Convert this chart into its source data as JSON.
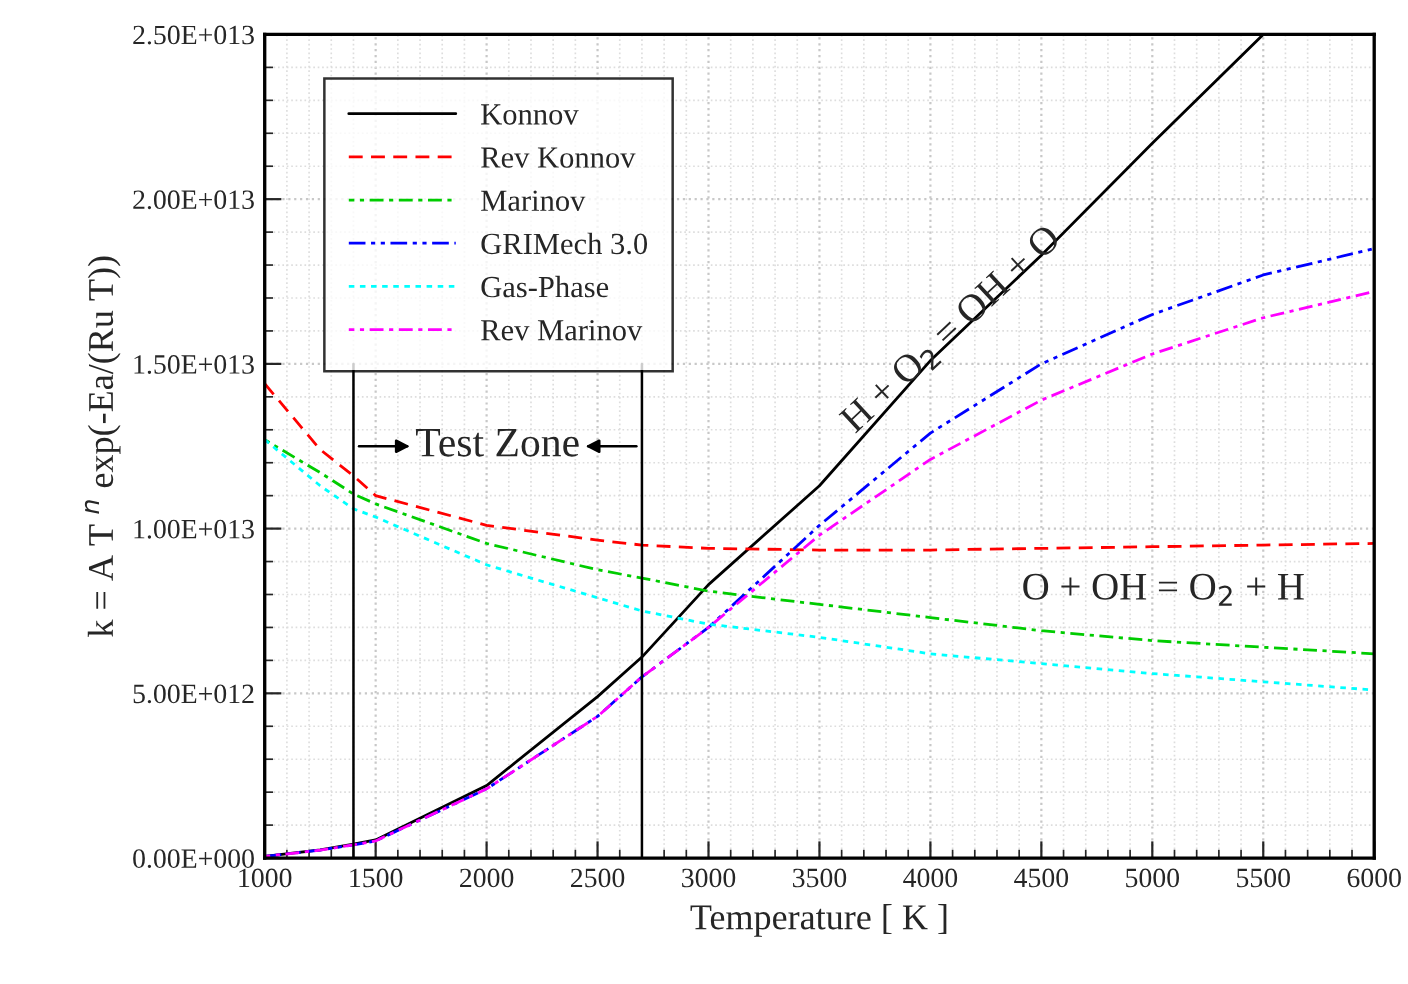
{
  "chart_data": {
    "type": "line",
    "xlabel": "Temperature [ K ]",
    "ylabel": "k = A T $^{n}$ exp(-Ea/(Ru T))",
    "x": [
      1000,
      1250,
      1400,
      1500,
      2000,
      2500,
      2700,
      3000,
      3500,
      4000,
      4500,
      5000,
      5500,
      6000
    ],
    "series": [
      {
        "name": "Konnov",
        "color": "#000000",
        "line_style": "solid",
        "values": [
          50000000000.0,
          250000000000.0,
          420000000000.0,
          550000000000.0,
          2200000000000.0,
          4900000000000.0,
          6100000000000.0,
          8300000000000.0,
          11300000000000.0,
          15100000000000.0,
          18300000000000.0,
          21700000000000.0,
          25000000000000.0,
          null
        ]
      },
      {
        "name": "Rev Konnov",
        "color": "#ff0000",
        "line_style": "dashed",
        "values": [
          14400000000000.0,
          12400000000000.0,
          11600000000000.0,
          11000000000000.0,
          10100000000000.0,
          9650000000000.0,
          9500000000000.0,
          9400000000000.0,
          9350000000000.0,
          9350000000000.0,
          9400000000000.0,
          9450000000000.0,
          9500000000000.0,
          9550000000000.0
        ]
      },
      {
        "name": "Marinov",
        "color": "#00cc00",
        "line_style": "dashdot",
        "values": [
          12700000000000.0,
          11700000000000.0,
          11050000000000.0,
          10750000000000.0,
          9550000000000.0,
          8750000000000.0,
          8500000000000.0,
          8100000000000.0,
          7700000000000.0,
          7300000000000.0,
          6900000000000.0,
          6600000000000.0,
          6400000000000.0,
          6200000000000.0
        ]
      },
      {
        "name": "GRIMech 3.0",
        "color": "#0000ff",
        "line_style": "dashdotdot",
        "values": [
          50000000000.0,
          240000000000.0,
          400000000000.0,
          520000000000.0,
          2100000000000.0,
          4300000000000.0,
          5500000000000.0,
          7000000000000.0,
          10100000000000.0,
          12900000000000.0,
          15000000000000.0,
          16500000000000.0,
          17700000000000.0,
          18500000000000.0
        ]
      },
      {
        "name": "Gas-Phase",
        "color": "#00ffff",
        "line_style": "dotted",
        "values": [
          12700000000000.0,
          11300000000000.0,
          10600000000000.0,
          10350000000000.0,
          8900000000000.0,
          7900000000000.0,
          7500000000000.0,
          7100000000000.0,
          6700000000000.0,
          6200000000000.0,
          5900000000000.0,
          5600000000000.0,
          5350000000000.0,
          5100000000000.0
        ]
      },
      {
        "name": "Rev Marinov",
        "color": "#ff00ff",
        "line_style": "dashdot",
        "values": [
          50000000000.0,
          240000000000.0,
          400000000000.0,
          520000000000.0,
          2100000000000.0,
          4300000000000.0,
          5500000000000.0,
          7000000000000.0,
          9800000000000.0,
          12100000000000.0,
          13900000000000.0,
          15300000000000.0,
          16400000000000.0,
          17200000000000.0
        ]
      }
    ],
    "xlim": [
      1000,
      6000
    ],
    "xticks": [
      1000,
      1500,
      2000,
      2500,
      3000,
      3500,
      4000,
      4500,
      5000,
      5500,
      6000
    ],
    "ylim": [
      0,
      25000000000000.0
    ],
    "yticks": [
      {
        "value": 0,
        "label": "0.00E+000"
      },
      {
        "value": 5000000000000.0,
        "label": "5.00E+012"
      },
      {
        "value": 10000000000000.0,
        "label": "1.00E+013"
      },
      {
        "value": 15000000000000.0,
        "label": "1.50E+013"
      },
      {
        "value": 20000000000000.0,
        "label": "2.00E+013"
      },
      {
        "value": 25000000000000.0,
        "label": "2.50E+013"
      }
    ],
    "ref_lines": [
      {
        "axis": "x",
        "value": 1400,
        "color": "#000000"
      },
      {
        "axis": "x",
        "value": 2700,
        "color": "#000000"
      }
    ],
    "annotations": [
      "Test Zone",
      {
        "text": "H + O$_{2}$ = OH + O",
        "x": 4100,
        "y": 16000000000000.0
      },
      "O + OH = O$_{2}$ + H"
    ],
    "grid": true,
    "legend": "top left"
  }
}
